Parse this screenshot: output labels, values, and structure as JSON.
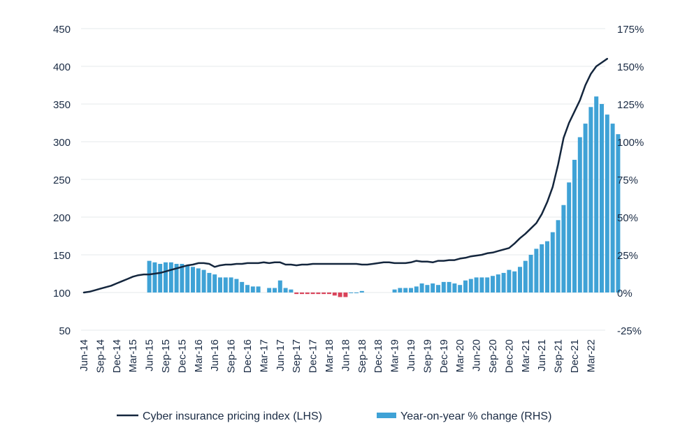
{
  "chart_data": {
    "type": "bar+line",
    "left_axis": {
      "ticks": [
        450,
        400,
        350,
        300,
        250,
        200,
        150,
        100,
        50
      ],
      "ylim": [
        50,
        450
      ]
    },
    "right_axis": {
      "ticks": [
        "175%",
        "150%",
        "125%",
        "100%",
        "75%",
        "50%",
        "25%",
        "0%",
        "-25%"
      ],
      "ylim": [
        -25,
        175
      ]
    },
    "x_tick_labels": [
      "Jun-14",
      "Sep-14",
      "Dec-14",
      "Mar-15",
      "Jun-15",
      "Sep-15",
      "Dec-15",
      "Mar-16",
      "Jun-16",
      "Sep-16",
      "Dec-16",
      "Mar-17",
      "Jun-17",
      "Sep-17",
      "Dec-17",
      "Mar-18",
      "Jun-18",
      "Sep-18",
      "Dec-18",
      "Mar-19",
      "Jun-19",
      "Sep-19",
      "Dec-19",
      "Mar-20",
      "Jun-20",
      "Sep-20",
      "Dec-20",
      "Mar-21",
      "Jun-21",
      "Sep-21",
      "Dec-21",
      "Mar-22"
    ],
    "grid": "horizontal",
    "legend_position": "bottom",
    "series": [
      {
        "name": "Cyber insurance pricing index (LHS)",
        "type": "line",
        "axis": "left",
        "color": "#14263d",
        "values": [
          100,
          101,
          103,
          105,
          107,
          109,
          112,
          115,
          118,
          121,
          123,
          124,
          124,
          125,
          126,
          128,
          130,
          132,
          134,
          136,
          137,
          139,
          139,
          138,
          134,
          136,
          137,
          137,
          138,
          138,
          139,
          139,
          139,
          140,
          139,
          140,
          140,
          137,
          137,
          136,
          137,
          137,
          138,
          138,
          138,
          138,
          138,
          138,
          138,
          138,
          138,
          137,
          137,
          138,
          139,
          140,
          140,
          139,
          139,
          139,
          140,
          142,
          141,
          141,
          140,
          142,
          142,
          143,
          143,
          145,
          146,
          148,
          149,
          150,
          152,
          153,
          155,
          157,
          159,
          165,
          172,
          178,
          185,
          192,
          204,
          220,
          240,
          270,
          305,
          325,
          340,
          355,
          375,
          390,
          400,
          405,
          410
        ]
      },
      {
        "name": "Year-on-year % change (RHS)",
        "type": "bar",
        "axis": "right",
        "color": "#3fa2d6",
        "negative_color": "#d9435a",
        "start_index": 12,
        "values": [
          21,
          20,
          19,
          20,
          20,
          19,
          19,
          18,
          17,
          16,
          15,
          13,
          12,
          10,
          10,
          10,
          9,
          7,
          5,
          4,
          4,
          null,
          3,
          3,
          8,
          3,
          2,
          -1,
          -1,
          -1,
          -1,
          -1,
          -1,
          -1,
          -2,
          -3,
          -3,
          0,
          0,
          1,
          null,
          null,
          null,
          null,
          null,
          2,
          3,
          3,
          3,
          4,
          6,
          5,
          6,
          5,
          7,
          7,
          6,
          5,
          8,
          9,
          10,
          10,
          10,
          11,
          12,
          13,
          15,
          14,
          17,
          21,
          25,
          29,
          32,
          34,
          40,
          48,
          58,
          73,
          88,
          103,
          112,
          123,
          130,
          125,
          118,
          112,
          105
        ]
      }
    ]
  }
}
